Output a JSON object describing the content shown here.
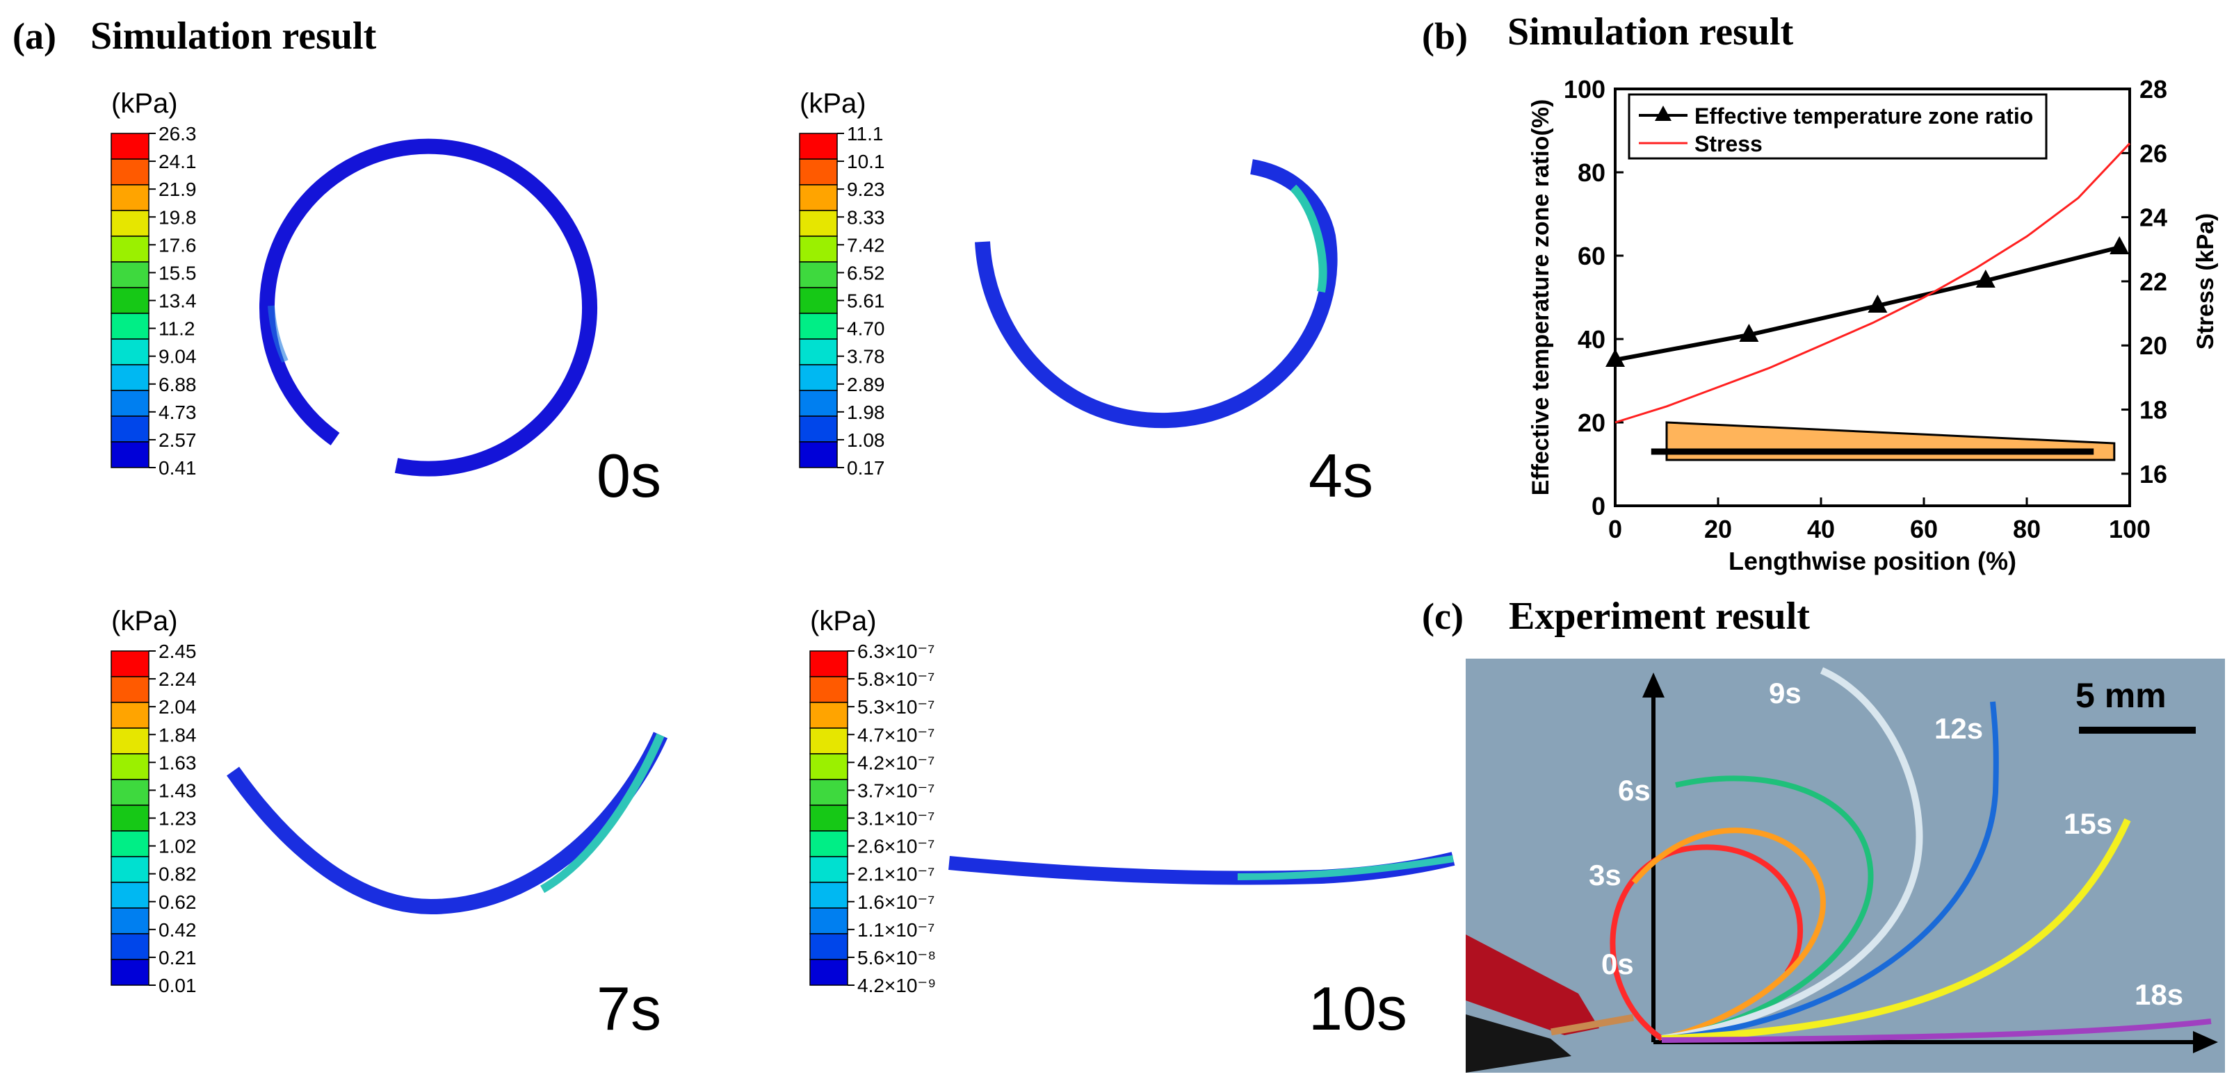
{
  "panel_a": {
    "letter": "(a)",
    "title": "Simulation result",
    "unit": "(kPa)",
    "frames": [
      {
        "time": "0s",
        "ticks": [
          "26.3",
          "24.1",
          "21.9",
          "19.8",
          "17.6",
          "15.5",
          "13.4",
          "11.2",
          "9.04",
          "6.88",
          "4.73",
          "2.57",
          "0.41"
        ]
      },
      {
        "time": "4s",
        "ticks": [
          "11.1",
          "10.1",
          "9.23",
          "8.33",
          "7.42",
          "6.52",
          "5.61",
          "4.70",
          "3.78",
          "2.89",
          "1.98",
          "1.08",
          "0.17"
        ]
      },
      {
        "time": "7s",
        "ticks": [
          "2.45",
          "2.24",
          "2.04",
          "1.84",
          "1.63",
          "1.43",
          "1.23",
          "1.02",
          "0.82",
          "0.62",
          "0.42",
          "0.21",
          "0.01"
        ]
      },
      {
        "time": "10s",
        "ticks": [
          "6.3×10⁻⁷",
          "5.8×10⁻⁷",
          "5.3×10⁻⁷",
          "4.7×10⁻⁷",
          "4.2×10⁻⁷",
          "3.7×10⁻⁷",
          "3.1×10⁻⁷",
          "2.6×10⁻⁷",
          "2.1×10⁻⁷",
          "1.6×10⁻⁷",
          "1.1×10⁻⁷",
          "5.6×10⁻⁸",
          "4.2×10⁻⁹"
        ]
      }
    ],
    "colormap": [
      "#ff0000",
      "#ff5a00",
      "#ffa400",
      "#e6e600",
      "#9bf000",
      "#3ed93e",
      "#16c816",
      "#00ee86",
      "#00e0d0",
      "#00b8f2",
      "#007ff0",
      "#0046ea",
      "#0000d8"
    ]
  },
  "panel_b": {
    "letter": "(b)",
    "title": "Simulation result",
    "chart_data": {
      "type": "line",
      "xlabel": "Lengthwise position  (%)",
      "ylabel": "Effective temperature zone ratio(%)",
      "ylabel_right": "Stress  (kPa)",
      "xlim": [
        0,
        100
      ],
      "ylim": [
        0,
        100
      ],
      "ylim_right": [
        15,
        28
      ],
      "x_ticks": [
        "0",
        "20",
        "40",
        "60",
        "80",
        "100"
      ],
      "y_ticks": [
        "0",
        "20",
        "40",
        "60",
        "80",
        "100"
      ],
      "y_right_ticks": [
        "16",
        "18",
        "20",
        "22",
        "24",
        "26",
        "28"
      ],
      "legend_position": "top-left",
      "series": [
        {
          "name": "Effective temperature zone ratio",
          "axis": "left",
          "color": "#000000",
          "marker": "triangle",
          "x": [
            0,
            26,
            51,
            72,
            98
          ],
          "y": [
            35,
            41,
            48,
            54,
            62
          ]
        },
        {
          "name": "Stress",
          "axis": "right",
          "color": "#ff2020",
          "marker": "none",
          "x": [
            0,
            10,
            20,
            30,
            40,
            50,
            60,
            70,
            80,
            90,
            100
          ],
          "y": [
            17.6,
            18.1,
            18.7,
            19.3,
            20.0,
            20.7,
            21.5,
            22.4,
            23.4,
            24.6,
            26.3
          ]
        }
      ],
      "inset": {
        "description": "tapered strip",
        "fill": "#ffb45a"
      }
    }
  },
  "panel_c": {
    "letter": "(c)",
    "title": "Experiment result",
    "scale_bar": "5 mm",
    "times": [
      "0s",
      "3s",
      "6s",
      "9s",
      "12s",
      "15s",
      "18s"
    ]
  }
}
